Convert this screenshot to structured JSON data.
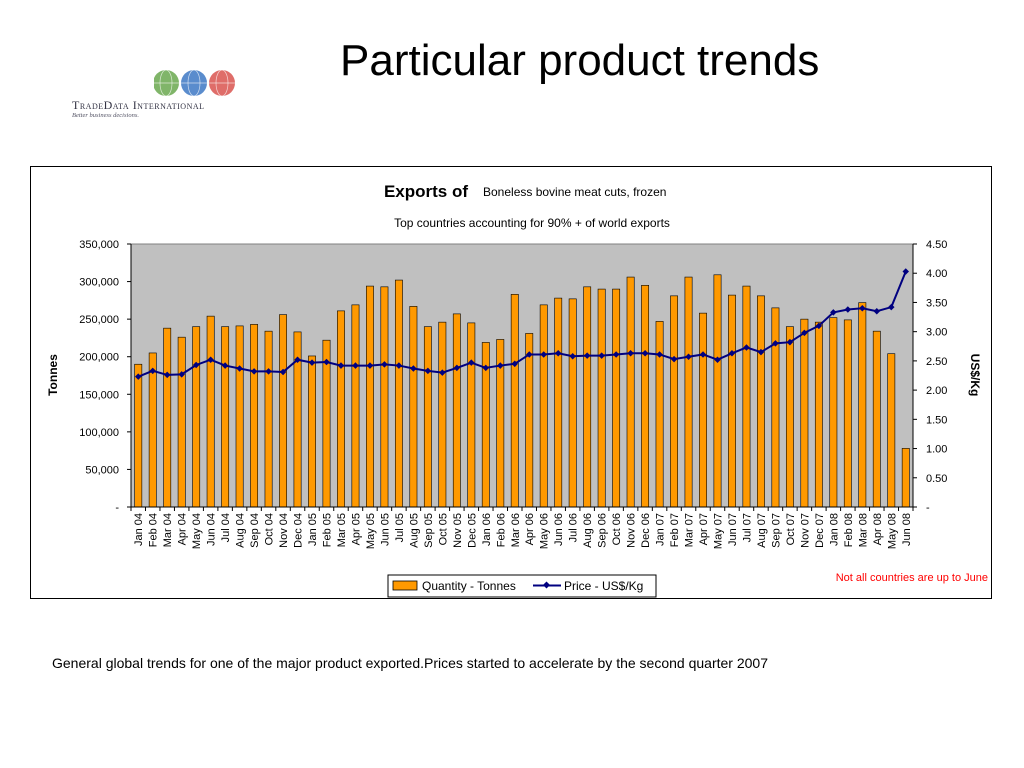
{
  "slide": {
    "title": "Particular product trends",
    "footnote": "General global trends for one of the major product exported.Prices started to accelerate by the second quarter 2007"
  },
  "logo": {
    "name": "TradeData International",
    "tagline": "Better business decisions.",
    "globe_colors": [
      "#6aa84f",
      "#3d78c4",
      "#d9534f"
    ]
  },
  "chart_data": {
    "type": "bar",
    "title": "Exports of",
    "product": "Boneless bovine meat cuts, frozen",
    "subtitle": "Top countries accounting for 90% + of world exports",
    "xlabel": "",
    "ylabel": "Tonnes",
    "y2label": "US$/Kg",
    "ylim": [
      0,
      350000
    ],
    "y2lim": [
      0,
      4.5
    ],
    "yticks": [
      "-",
      "50,000",
      "100,000",
      "150,000",
      "200,000",
      "250,000",
      "300,000",
      "350,000"
    ],
    "y2ticks": [
      "-",
      "0.50",
      "1.00",
      "1.50",
      "2.00",
      "2.50",
      "3.00",
      "3.50",
      "4.00",
      "4.50"
    ],
    "grid": false,
    "legend_position": "bottom",
    "note": "Not all countries are up to June",
    "colors": {
      "bar": "#FF9900",
      "line": "#000080",
      "plot_bg": "#C0C0C0",
      "note": "#FF0000"
    },
    "categories": [
      "Jan 04",
      "Feb 04",
      "Mar 04",
      "Apr 04",
      "May 04",
      "Jun 04",
      "Jul 04",
      "Aug 04",
      "Sep 04",
      "Oct 04",
      "Nov 04",
      "Dec 04",
      "Jan 05",
      "Feb 05",
      "Mar 05",
      "Apr 05",
      "May 05",
      "Jun 05",
      "Jul 05",
      "Aug 05",
      "Sep 05",
      "Oct 05",
      "Nov 05",
      "Dec 05",
      "Jan 06",
      "Feb 06",
      "Mar 06",
      "Apr 06",
      "May 06",
      "Jun 06",
      "Jul 06",
      "Aug 06",
      "Sep 06",
      "Oct 06",
      "Nov 06",
      "Dec 06",
      "Jan 07",
      "Feb 07",
      "Mar 07",
      "Apr 07",
      "May 07",
      "Jun 07",
      "Jul 07",
      "Aug 07",
      "Sep 07",
      "Oct 07",
      "Nov 07",
      "Dec 07",
      "Jan 08",
      "Feb 08",
      "Mar 08",
      "Apr 08",
      "May 08",
      "Jun 08"
    ],
    "series": [
      {
        "name": "Quantity - Tonnes",
        "kind": "bar",
        "axis": "left",
        "values": [
          190000,
          205000,
          238000,
          226000,
          240000,
          254000,
          240000,
          241000,
          243000,
          234000,
          256000,
          233000,
          201000,
          222000,
          261000,
          269000,
          294000,
          293000,
          302000,
          267000,
          240000,
          246000,
          257000,
          245000,
          219000,
          223000,
          283000,
          231000,
          269000,
          278000,
          277000,
          293000,
          290000,
          290000,
          306000,
          295000,
          247000,
          281000,
          306000,
          258000,
          309000,
          282000,
          294000,
          281000,
          265000,
          240000,
          250000,
          246000,
          252000,
          249000,
          272000,
          234000,
          204000,
          78000
        ]
      },
      {
        "name": "Price - US$/Kg",
        "kind": "line",
        "axis": "right",
        "values": [
          2.23,
          2.33,
          2.26,
          2.27,
          2.43,
          2.52,
          2.42,
          2.37,
          2.32,
          2.32,
          2.31,
          2.52,
          2.47,
          2.48,
          2.42,
          2.42,
          2.42,
          2.44,
          2.42,
          2.37,
          2.33,
          2.3,
          2.38,
          2.47,
          2.38,
          2.42,
          2.45,
          2.61,
          2.61,
          2.63,
          2.58,
          2.59,
          2.59,
          2.61,
          2.63,
          2.63,
          2.61,
          2.53,
          2.57,
          2.61,
          2.52,
          2.63,
          2.73,
          2.65,
          2.8,
          2.82,
          2.98,
          3.1,
          3.33,
          3.38,
          3.4,
          3.35,
          3.42,
          4.03
        ]
      }
    ]
  }
}
